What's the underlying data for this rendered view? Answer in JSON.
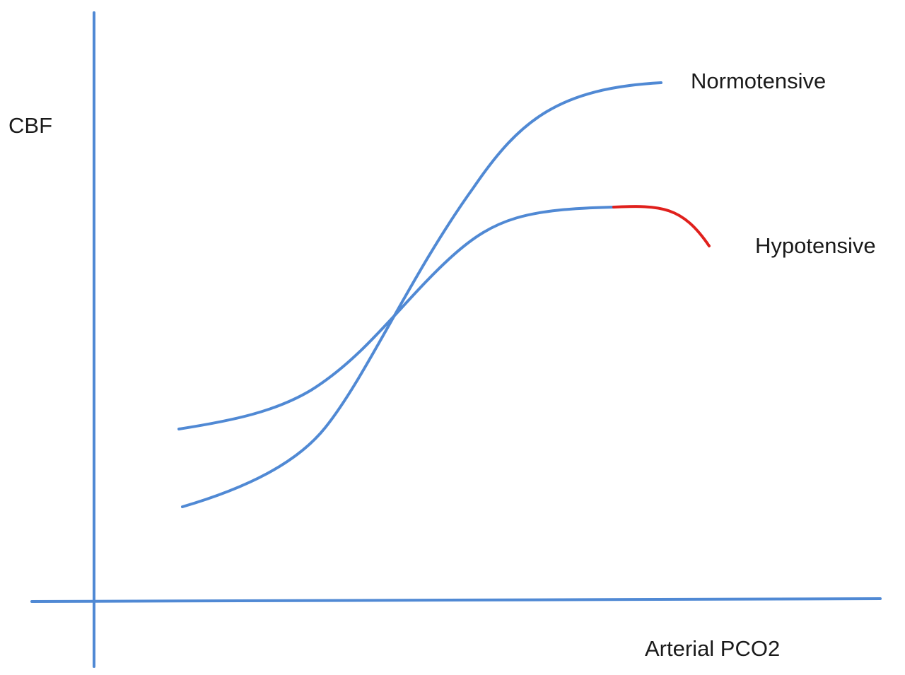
{
  "y_axis_label": "CBF",
  "x_axis_label": "Arterial PCO2",
  "curves": [
    {
      "label": "Normotensive"
    },
    {
      "label": "Hypotensive"
    }
  ]
}
